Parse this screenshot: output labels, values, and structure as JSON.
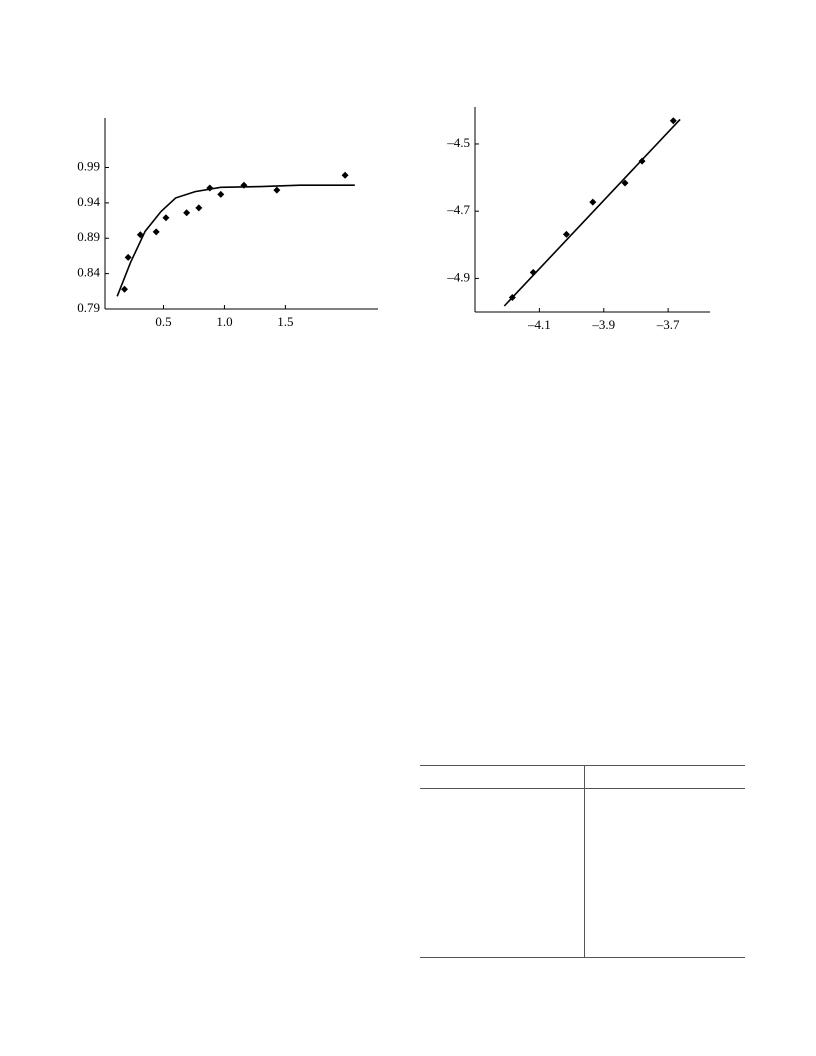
{
  "chart_data": [
    {
      "type": "scatter",
      "xlim": [
        0.02,
        2.26
      ],
      "ylim": [
        0.79,
        1.06
      ],
      "xticks": [
        0.5,
        {
          "value": 1,
          "label": "1.0"
        },
        1.5
      ],
      "yticks": [
        0.99,
        0.94,
        0.89,
        0.84,
        0.79
      ],
      "series": [
        {
          "color": "#000000",
          "marker": "diamond",
          "x": [
            0.18,
            0.21,
            0.31,
            0.44,
            0.52,
            0.69,
            0.79,
            0.88,
            0.97,
            1.16,
            1.43,
            1.99
          ],
          "values": [
            0.818,
            0.863,
            0.895,
            0.899,
            0.919,
            0.926,
            0.933,
            0.961,
            0.952,
            0.965,
            0.958,
            0.979
          ]
        },
        {
          "color": "#000000",
          "marker": "line",
          "x": [
            0.12,
            0.23,
            0.35,
            0.48,
            0.6,
            0.76,
            0.97,
            1.3,
            1.62,
            2.07
          ],
          "values": [
            0.808,
            0.856,
            0.9,
            0.928,
            0.947,
            0.956,
            0.962,
            0.963,
            0.965,
            0.965
          ]
        }
      ]
    },
    {
      "type": "scatter",
      "xlim": [
        -4.3,
        -3.57
      ],
      "ylim": [
        -5.0,
        -4.39
      ],
      "xticks": [
        {
          "value": -4.1,
          "label": "–4.1"
        },
        {
          "value": -3.9,
          "label": "–3.9"
        },
        {
          "value": -3.7,
          "label": "–3.7"
        }
      ],
      "yticks": [
        {
          "value": -4.5,
          "label": "–4.5"
        },
        {
          "value": -4.7,
          "label": "–4.7"
        },
        {
          "value": -4.9,
          "label": "–4.9"
        }
      ],
      "series": [
        {
          "color": "#000000",
          "marker": "diamond",
          "x": [
            -4.184,
            -4.119,
            -4.016,
            -3.934,
            -3.834,
            -3.781,
            -3.684
          ],
          "values": [
            -4.957,
            -4.882,
            -4.769,
            -4.673,
            -4.616,
            -4.551,
            -4.431
          ]
        },
        {
          "color": "#000000",
          "marker": "line",
          "x": [
            -4.209,
            -3.663
          ],
          "values": [
            -4.982,
            -4.427
          ]
        }
      ]
    }
  ]
}
